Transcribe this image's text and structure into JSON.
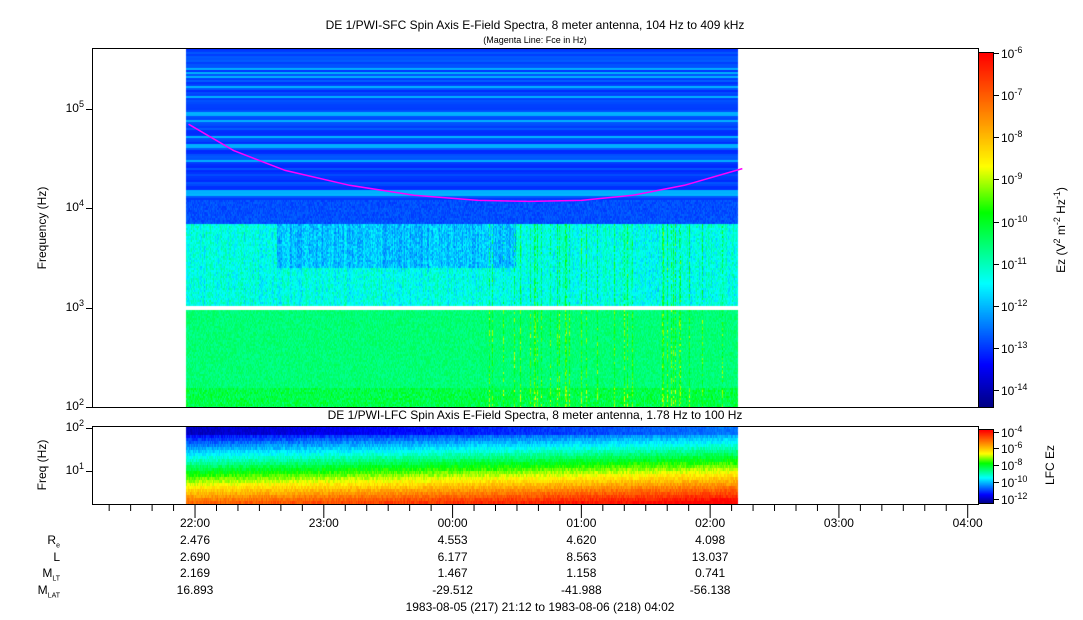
{
  "chart_data": [
    {
      "type": "heatmap",
      "title": "DE 1/PWI-SFC  Spin Axis E-Field Spectra, 8 meter antenna, 104 Hz to 409 kHz",
      "subtitle": "(Magenta Line: Fce in Hz)",
      "ylabel": "Frequency (Hz)",
      "yscale": "log",
      "ylim": [
        100,
        409000
      ],
      "yticks": [
        {
          "b": "10",
          "e": "2"
        },
        {
          "b": "10",
          "e": "3"
        },
        {
          "b": "10",
          "e": "4"
        },
        {
          "b": "10",
          "e": "5"
        }
      ],
      "colorbar": {
        "label": "Ez (V² m⁻² Hz⁻¹)",
        "log_range": [
          -14.4,
          -6
        ],
        "ticks": [
          {
            "b": "10",
            "e": "-6"
          },
          {
            "b": "10",
            "e": "-7"
          },
          {
            "b": "10",
            "e": "-8"
          },
          {
            "b": "10",
            "e": "-9"
          },
          {
            "b": "10",
            "e": "-10"
          },
          {
            "b": "10",
            "e": "-11"
          },
          {
            "b": "10",
            "e": "-12"
          },
          {
            "b": "10",
            "e": "-13"
          },
          {
            "b": "10",
            "e": "-14"
          }
        ]
      },
      "data_time_range_hours": [
        21.93,
        26.22
      ],
      "fce_line": {
        "color": "#ff00ff",
        "hours": [
          21.95,
          22.3,
          22.7,
          23.2,
          23.7,
          24.2,
          24.6,
          25.0,
          25.4,
          25.8,
          26.25
        ],
        "hz": [
          70000,
          38000,
          24000,
          17000,
          13500,
          12000,
          11700,
          12000,
          13500,
          17000,
          25000
        ]
      }
    },
    {
      "type": "heatmap",
      "title": "DE 1/PWI-LFC  Spin Axis E-Field Spectra, 8 meter antenna, 1.78 Hz to 100 Hz",
      "ylabel": "Freq (Hz)",
      "yscale": "log",
      "ylim": [
        1.78,
        110
      ],
      "yticks": [
        {
          "b": "10",
          "e": "1"
        },
        {
          "b": "10",
          "e": "2"
        }
      ],
      "colorbar": {
        "label": "LFC Ez",
        "log_range": [
          -12.5,
          -3.8
        ],
        "ticks": [
          {
            "b": "10",
            "e": "-4"
          },
          {
            "b": "10",
            "e": "-6"
          },
          {
            "b": "10",
            "e": "-8"
          },
          {
            "b": "10",
            "e": "-10"
          },
          {
            "b": "10",
            "e": "-12"
          }
        ]
      },
      "data_time_range_hours": [
        21.93,
        26.22
      ]
    }
  ],
  "xaxis": {
    "range_hours": [
      21.2,
      28.08
    ],
    "ticks": [
      {
        "h": 22,
        "label": "22:00"
      },
      {
        "h": 23,
        "label": "23:00"
      },
      {
        "h": 24,
        "label": "00:00"
      },
      {
        "h": 25,
        "label": "01:00"
      },
      {
        "h": 26,
        "label": "02:00"
      },
      {
        "h": 27,
        "label": "03:00"
      },
      {
        "h": 28,
        "label": "04:00"
      }
    ]
  },
  "ephemeris": [
    {
      "label": "R",
      "sub": "e",
      "values": [
        "2.476",
        "",
        "4.553",
        "4.620",
        "4.098"
      ]
    },
    {
      "label": "L",
      "sub": "",
      "values": [
        "2.690",
        "",
        "6.177",
        "8.563",
        "13.037"
      ]
    },
    {
      "label": "M",
      "sub": "LT",
      "values": [
        "2.169",
        "",
        "1.467",
        "1.158",
        "0.741"
      ]
    },
    {
      "label": "M",
      "sub": "LAT",
      "values": [
        "16.893",
        "",
        "-29.512",
        "-41.988",
        "-56.138"
      ]
    }
  ],
  "date_range": "1983-08-05 (217) 21:12 to 1983-08-06 (218) 04:02"
}
